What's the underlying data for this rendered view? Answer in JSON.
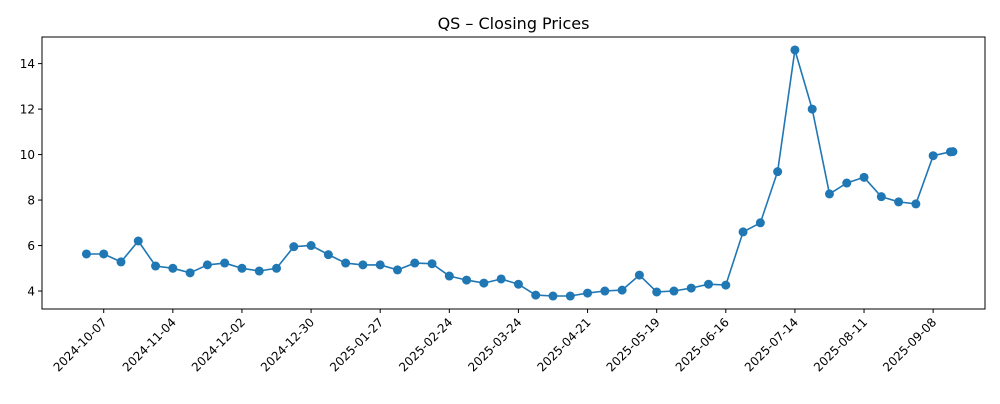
{
  "chart_data": {
    "type": "line",
    "title": "QS – Closing Prices",
    "xlabel": "",
    "ylabel": "",
    "xlim": [
      "2024-09-12",
      "2025-09-29"
    ],
    "ylim": [
      3.21,
      15.17
    ],
    "grid": false,
    "color": "#1f77b4",
    "marker": "circle",
    "x_ticks": [
      "2024-10-07",
      "2024-11-04",
      "2024-12-02",
      "2024-12-30",
      "2025-01-27",
      "2025-02-24",
      "2025-03-24",
      "2025-04-21",
      "2025-05-19",
      "2025-06-16",
      "2025-07-14",
      "2025-08-11",
      "2025-09-08"
    ],
    "y_ticks": [
      4,
      6,
      8,
      10,
      12,
      14
    ],
    "series": [
      {
        "name": "QS",
        "x": [
          "2024-09-30",
          "2024-10-07",
          "2024-10-14",
          "2024-10-21",
          "2024-10-28",
          "2024-11-04",
          "2024-11-11",
          "2024-11-18",
          "2024-11-25",
          "2024-12-02",
          "2024-12-09",
          "2024-12-16",
          "2024-12-23",
          "2024-12-30",
          "2025-01-06",
          "2025-01-13",
          "2025-01-20",
          "2025-01-27",
          "2025-02-03",
          "2025-02-10",
          "2025-02-17",
          "2025-02-24",
          "2025-03-03",
          "2025-03-10",
          "2025-03-17",
          "2025-03-24",
          "2025-03-31",
          "2025-04-07",
          "2025-04-14",
          "2025-04-21",
          "2025-04-28",
          "2025-05-05",
          "2025-05-12",
          "2025-05-19",
          "2025-05-26",
          "2025-06-02",
          "2025-06-09",
          "2025-06-16",
          "2025-06-23",
          "2025-06-30",
          "2025-07-07",
          "2025-07-14",
          "2025-07-21",
          "2025-07-28",
          "2025-08-04",
          "2025-08-11",
          "2025-08-18",
          "2025-08-25",
          "2025-09-01",
          "2025-09-08",
          "2025-09-15",
          "2025-09-16"
        ],
        "values": [
          5.63,
          5.63,
          5.28,
          6.2,
          5.1,
          5.0,
          4.8,
          5.15,
          5.23,
          5.0,
          4.88,
          5.0,
          5.95,
          6.0,
          5.6,
          5.23,
          5.15,
          5.15,
          4.93,
          5.23,
          5.2,
          4.66,
          4.48,
          4.35,
          4.53,
          4.3,
          3.82,
          3.78,
          3.78,
          3.91,
          4.0,
          4.04,
          4.7,
          3.96,
          4.0,
          4.13,
          4.3,
          4.26,
          6.6,
          7.0,
          9.25,
          14.6,
          12.0,
          8.27,
          8.75,
          9.0,
          8.15,
          7.92,
          7.83,
          9.95,
          10.12,
          10.13
        ]
      }
    ]
  }
}
